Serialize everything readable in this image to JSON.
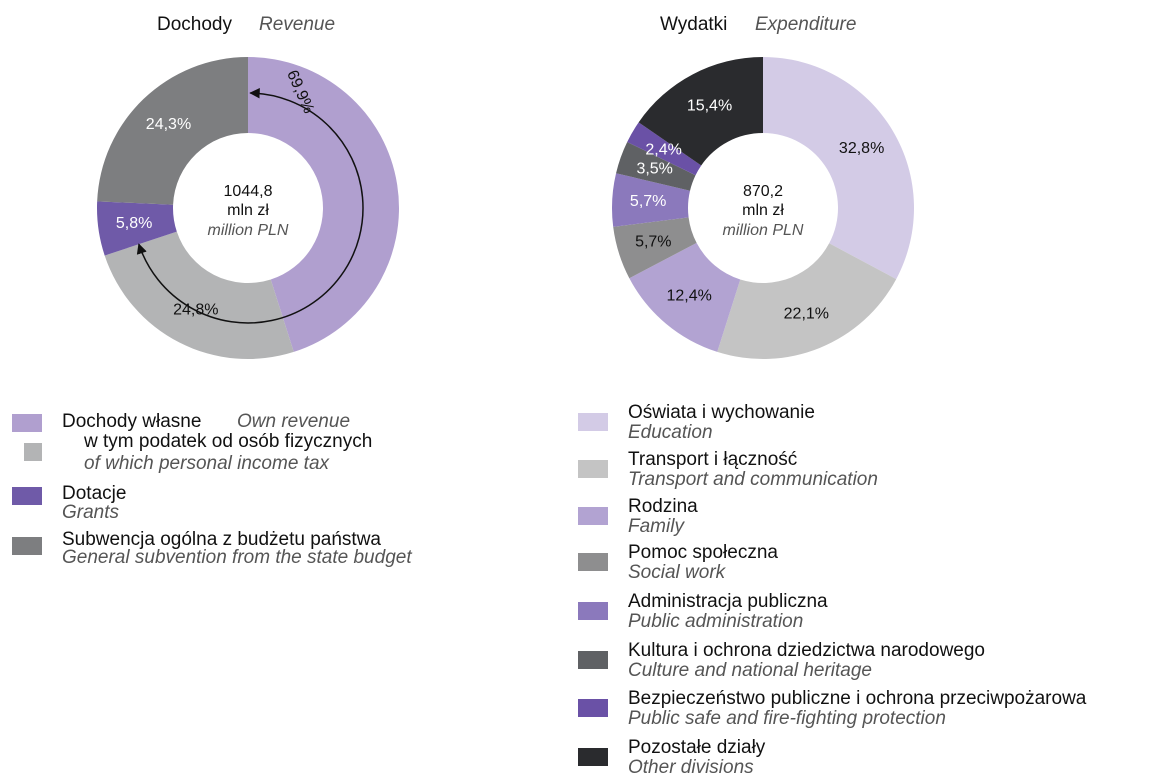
{
  "chart_data": [
    {
      "type": "pie",
      "donut": true,
      "title": "Dochody",
      "subtitle": "Revenue",
      "center": {
        "value": 1044.8,
        "label": "1044,8"
      },
      "center_unit": "mln zł",
      "center_unit_en": "million PLN",
      "categories": [
        "Dochody własne",
        "w tym podatek od osób fizycznych",
        "Dotacje",
        "Subwencja ogólna z budżetu państwa"
      ],
      "categories_en": [
        "Own revenue",
        "of which personal income tax",
        "Grants",
        "General subvention from the state budget"
      ],
      "values": [
        45.1,
        24.8,
        5.8,
        24.3
      ],
      "value_labels": [
        null,
        "24,8%",
        "5,8%",
        "24,3%"
      ],
      "colors": [
        "#b09fcf",
        "#b3b4b5",
        "#6f5aa8",
        "#7d7e80"
      ],
      "annotation": {
        "value": 69.9,
        "label": "69,9%"
      }
    },
    {
      "type": "pie",
      "donut": true,
      "title": "Wydatki",
      "subtitle": "Expenditure",
      "center": {
        "value": 870.2,
        "label": "870,2"
      },
      "center_unit": "mln zł",
      "center_unit_en": "million PLN",
      "categories": [
        "Oświata i wychowanie",
        "Transport i łączność",
        "Rodzina",
        "Pomoc społeczna",
        "Administracja publiczna",
        "Kultura i ochrona dziedzictwa narodowego",
        "Bezpieczeństwo publiczne i ochrona przeciwpożarowa",
        "Pozostałe działy"
      ],
      "categories_en": [
        "Education",
        "Transport and communication",
        "Family",
        "Social work",
        "Public administration",
        "Culture and national heritage",
        "Public safe and fire-fighting protection",
        "Other divisions"
      ],
      "values": [
        32.8,
        22.1,
        12.4,
        5.7,
        5.7,
        3.5,
        2.4,
        15.4
      ],
      "value_labels": [
        "32,8%",
        "22,1%",
        "12,4%",
        "5,7%",
        "5,7%",
        "3,5%",
        "2,4%",
        "15,4%"
      ],
      "colors": [
        "#d3cbe6",
        "#c4c4c4",
        "#b2a3d2",
        "#8e8e8f",
        "#8b79bc",
        "#5f6164",
        "#6a51a6",
        "#2a2b2e"
      ]
    }
  ]
}
